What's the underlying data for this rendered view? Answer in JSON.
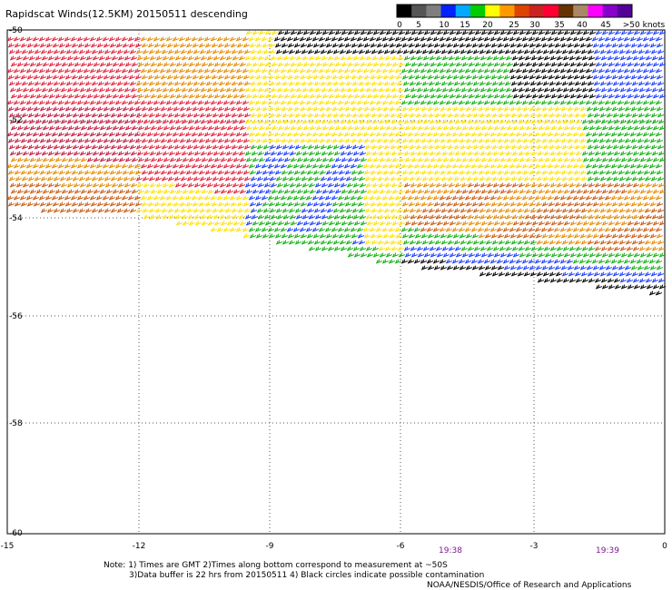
{
  "title": "Rapidscat Winds(12.5KM) 20150511 descending",
  "colorbar": {
    "labels": [
      "0",
      "5",
      "10",
      "15",
      "20",
      "25",
      "30",
      "35",
      "40",
      "45",
      ">50 knots"
    ],
    "colors": [
      "#000000",
      "#555555",
      "#7f7f7f",
      "#0022ff",
      "#00aaff",
      "#00cc00",
      "#ffff00",
      "#ff9900",
      "#dd4400",
      "#cc2222",
      "#ff0033",
      "#663300",
      "#aa8866",
      "#ff00ff",
      "#8800cc",
      "#550099"
    ]
  },
  "axes": {
    "lat_labels": [
      "-50",
      "-52",
      "-54",
      "-56",
      "-58",
      "-60"
    ],
    "lon_labels": [
      "-15",
      "-12",
      "-9",
      "-6",
      "-3",
      "0"
    ]
  },
  "time_labels": [
    "19:38",
    "19:39"
  ],
  "notes": {
    "line1": "Note: 1) Times are GMT 2)Times along bottom correspond to measurement at ~50S",
    "line2": "3)Data buffer is 22 hrs from 20150511 4) Black circles indicate possible contamination",
    "credit": "NOAA/NESDIS/Office of Research and Applications"
  },
  "wind_colors": {
    "black": "#000000",
    "blue": "#1a3cff",
    "green": "#10b010",
    "yellow": "#ffe100",
    "orange": "#e58a00",
    "darkorange": "#c85a10",
    "red": "#e0203a",
    "crimson": "#c01840"
  }
}
